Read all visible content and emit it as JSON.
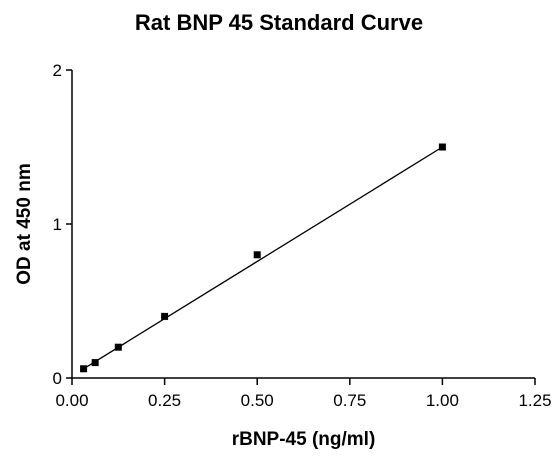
{
  "chart_data": {
    "type": "scatter",
    "title": "Rat BNP 45 Standard Curve",
    "xlabel": "rBNP-45 (ng/ml)",
    "ylabel": "OD at 450 nm",
    "xlim": [
      0,
      1.25
    ],
    "ylim": [
      0,
      2
    ],
    "xticks": [
      "0.00",
      "0.25",
      "0.50",
      "0.75",
      "1.00",
      "1.25"
    ],
    "yticks": [
      "0",
      "1",
      "2"
    ],
    "grid": false,
    "legend": "none",
    "colors": {
      "marker": "#000000",
      "line": "#000000",
      "axis": "#000000"
    },
    "series": [
      {
        "x": [
          0.03125,
          0.0625,
          0.125,
          0.25,
          0.5,
          1.0
        ],
        "y": [
          0.06,
          0.1,
          0.2,
          0.4,
          0.8,
          1.5
        ]
      }
    ],
    "fit_line": {
      "x": [
        0.03125,
        1.0
      ],
      "y": [
        0.06,
        1.5
      ]
    }
  }
}
